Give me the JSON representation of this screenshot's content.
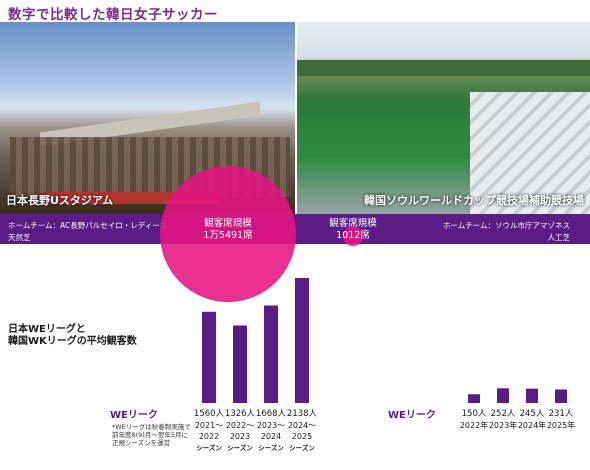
{
  "title": "数字で比較した韓日女子サッカー",
  "photos": {
    "left_caption": "日本長野Uスタジアム",
    "right_caption": "韓国ソウルワールドカップ競技場補助競技場"
  },
  "band": {
    "left_home": "ホームチーム：AC長野パルセイロ・レディース",
    "left_turf": "天然芝",
    "right_home": "ホームチーム：ソウル市庁アマゾネス",
    "right_turf": "人工芝"
  },
  "capacity": {
    "label": "観客席規模",
    "japan_value": "1万5491席",
    "korea_value": "1012席"
  },
  "chart_title_line1": "日本WEリーグと",
  "chart_title_line2": "韓国WKリーグの平均観客数",
  "japan_league_label": "WEリーク",
  "korea_league_label": "WEリーク",
  "note_lines": [
    "*WEリーグは秋春制実施で",
    "前年度8(9)月～翌年5月に",
    "正規シーズンを運営"
  ],
  "colors": {
    "purple": "#5a1d86",
    "magenta": "#e6147f"
  },
  "chart_data": [
    {
      "type": "bar",
      "title": "",
      "categories": [
        "2021～2022シーズン",
        "2022～2023シーズン",
        "2023～2024シーズン",
        "2024～2025シーズン"
      ],
      "tick_line1": [
        "2021～",
        "2022～",
        "2023～",
        "2024～"
      ],
      "tick_line2": [
        "2022",
        "2023",
        "2024",
        "2025"
      ],
      "tick_line3": [
        "シーズン",
        "シーズン",
        "シーズン",
        "シーズン"
      ],
      "values": [
        1560,
        1326,
        1668,
        2138
      ],
      "value_labels": [
        "1560人",
        "1326人",
        "1668人",
        "2138人"
      ],
      "ylim": [
        0,
        2138
      ]
    },
    {
      "type": "bar",
      "title": "",
      "categories": [
        "2022年",
        "2023年",
        "2024年",
        "2025年"
      ],
      "values": [
        150,
        252,
        245,
        231
      ],
      "value_labels": [
        "150人",
        "252人",
        "245人",
        "231人"
      ],
      "ylim": [
        0,
        2138
      ]
    }
  ]
}
